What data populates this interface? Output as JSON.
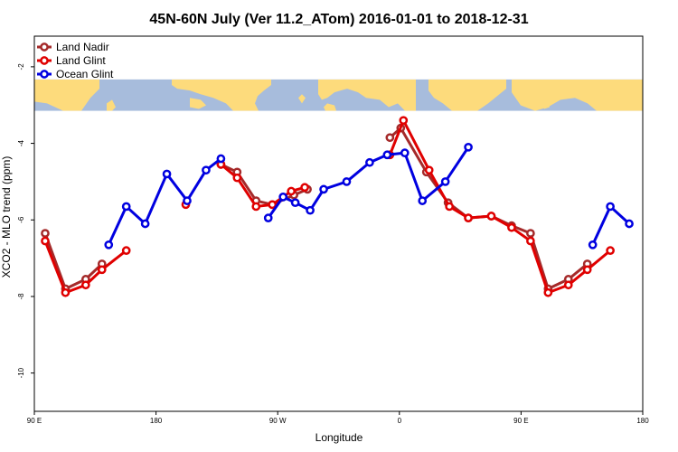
{
  "chart_data": {
    "type": "line",
    "title": "45N-60N July (Ver 11.2_ATom)   2016-01-01 to 2018-12-31",
    "xlabel": "Longitude",
    "ylabel": "XCO2 - MLO trend (ppm)",
    "xlim": [
      90,
      540
    ],
    "ylim": [
      -11,
      -1.2
    ],
    "x_ticks": [
      {
        "value": 90,
        "label": "90 E"
      },
      {
        "value": 180,
        "label": "180"
      },
      {
        "value": 270,
        "label": "90 W"
      },
      {
        "value": 360,
        "label": "0"
      },
      {
        "value": 450,
        "label": "90 E"
      },
      {
        "value": 540,
        "label": "180"
      }
    ],
    "y_ticks": [
      {
        "value": -2,
        "label": "-2"
      },
      {
        "value": -4,
        "label": "-4"
      },
      {
        "value": -6,
        "label": "-6"
      },
      {
        "value": -8,
        "label": "-8"
      },
      {
        "value": -10,
        "label": "-10"
      }
    ],
    "grid": false,
    "legend_position": "top-left",
    "map_strip": {
      "y_top": -2.33,
      "y_bottom": -3.15,
      "ocean_color": "#a7bcdc",
      "land_color": "#fddb7c"
    },
    "series": [
      {
        "name": "Land Nadir",
        "color": "#a52a2a",
        "segments": [
          [
            [
              98,
              -6.35
            ],
            [
              113,
              -7.8
            ],
            [
              128,
              -7.55
            ],
            [
              140,
              -7.15
            ]
          ],
          [
            [
              228,
              -4.55
            ],
            [
              240,
              -4.75
            ],
            [
              254,
              -5.5
            ],
            [
              266,
              -5.6
            ],
            [
              282,
              -5.35
            ],
            [
              292,
              -5.2
            ]
          ],
          [
            [
              353,
              -3.85
            ],
            [
              361,
              -3.6
            ],
            [
              380,
              -4.75
            ],
            [
              396,
              -5.55
            ],
            [
              411,
              -5.95
            ],
            [
              428,
              -5.9
            ],
            [
              443,
              -6.15
            ],
            [
              457,
              -6.35
            ],
            [
              470,
              -7.8
            ],
            [
              485,
              -7.55
            ],
            [
              499,
              -7.15
            ]
          ]
        ]
      },
      {
        "name": "Land Glint",
        "color": "#e00000",
        "segments": [
          [
            [
              98,
              -6.55
            ],
            [
              113,
              -7.9
            ],
            [
              128,
              -7.7
            ],
            [
              140,
              -7.3
            ],
            [
              158,
              -6.8
            ]
          ],
          [
            [
              202,
              -5.6
            ]
          ],
          [
            [
              228,
              -4.55
            ],
            [
              240,
              -4.9
            ],
            [
              254,
              -5.65
            ],
            [
              266,
              -5.6
            ],
            [
              280,
              -5.25
            ],
            [
              290,
              -5.15
            ]
          ],
          [
            [
              353,
              -4.3
            ],
            [
              363,
              -3.4
            ],
            [
              382,
              -4.7
            ],
            [
              397,
              -5.65
            ],
            [
              411,
              -5.95
            ],
            [
              428,
              -5.9
            ],
            [
              443,
              -6.2
            ],
            [
              457,
              -6.55
            ],
            [
              470,
              -7.9
            ],
            [
              485,
              -7.7
            ],
            [
              499,
              -7.3
            ],
            [
              516,
              -6.8
            ]
          ]
        ]
      },
      {
        "name": "Ocean Glint",
        "color": "#0000e0",
        "segments": [
          [
            [
              145,
              -6.65
            ],
            [
              158,
              -5.65
            ],
            [
              172,
              -6.1
            ],
            [
              188,
              -4.8
            ],
            [
              203,
              -5.5
            ],
            [
              217,
              -4.7
            ],
            [
              228,
              -4.4
            ]
          ],
          [
            [
              263,
              -5.95
            ],
            [
              274,
              -5.4
            ],
            [
              283,
              -5.55
            ],
            [
              294,
              -5.75
            ],
            [
              304,
              -5.2
            ],
            [
              321,
              -5.0
            ],
            [
              338,
              -4.5
            ],
            [
              351,
              -4.3
            ],
            [
              364,
              -4.25
            ],
            [
              377,
              -5.5
            ],
            [
              394,
              -5.0
            ],
            [
              411,
              -4.1
            ]
          ],
          [
            [
              503,
              -6.65
            ],
            [
              516,
              -5.65
            ],
            [
              530,
              -6.1
            ]
          ]
        ]
      }
    ]
  }
}
